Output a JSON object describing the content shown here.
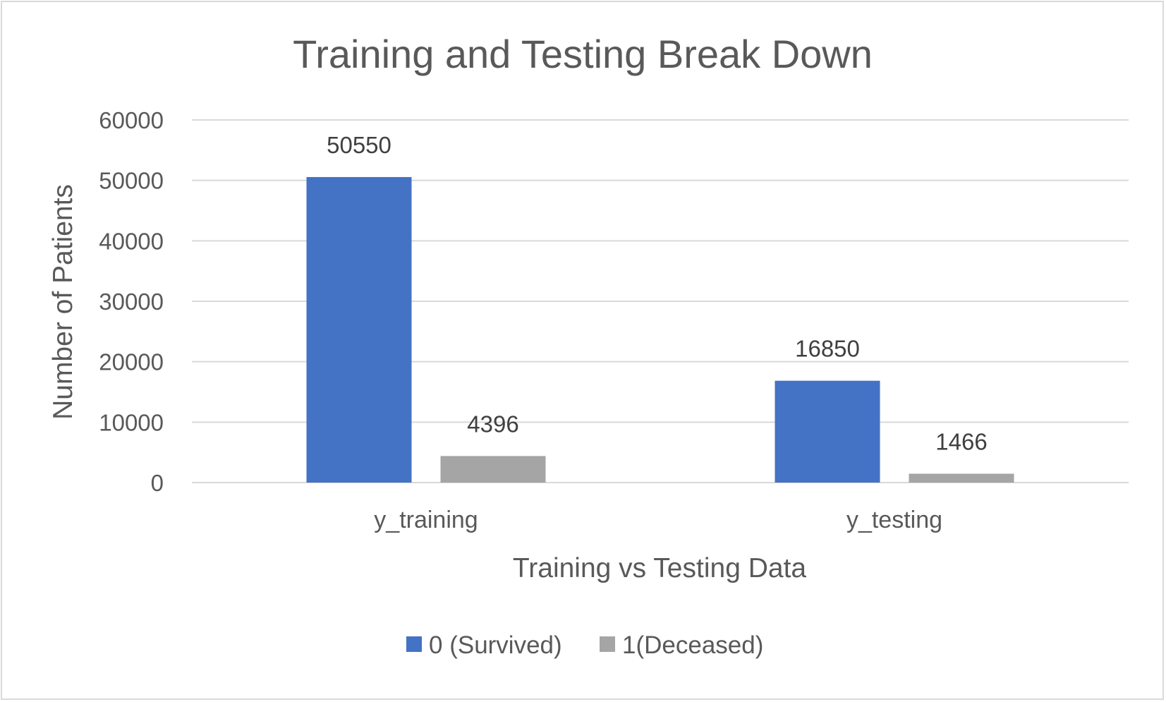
{
  "chart_data": {
    "type": "bar",
    "title": "Training and Testing Break Down",
    "xlabel": "Training vs Testing Data",
    "ylabel": "Number of Patients",
    "categories": [
      "y_training",
      "y_testing"
    ],
    "series": [
      {
        "name": "0 (Survived)",
        "values": [
          50550,
          16850
        ],
        "color": "#4472C4"
      },
      {
        "name": "1(Deceased)",
        "values": [
          4396,
          1466
        ],
        "color": "#A5A5A5"
      }
    ],
    "ylim": [
      0,
      60000
    ],
    "yticks": [
      0,
      10000,
      20000,
      30000,
      40000,
      50000,
      60000
    ],
    "grid": true,
    "legend": "bottom",
    "data_labels": true
  }
}
